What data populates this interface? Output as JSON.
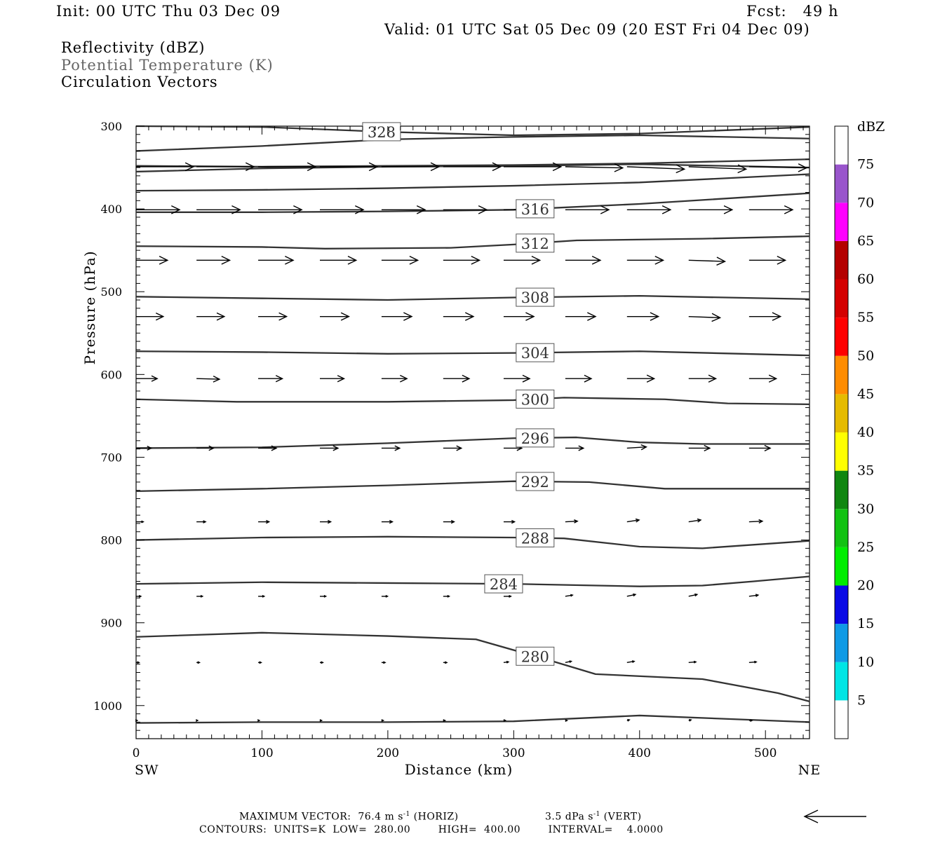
{
  "header": {
    "init": "Init: 00 UTC Thu 03 Dec 09",
    "fcst": "Fcst:   49 h",
    "valid": "Valid: 01 UTC Sat 05 Dec 09 (20 EST Fri 04 Dec 09)",
    "field1": "Reflectivity (dBZ)",
    "field2": "Potential Temperature (K)",
    "field3": "Circulation Vectors"
  },
  "colors": {
    "contour": "#333333",
    "vector": "#000000",
    "field2_text": "#666666"
  },
  "chart_data": {
    "type": "cross-section",
    "xlabel": "Distance (km)",
    "ylabel": "Pressure (hPa)",
    "xlim": [
      0,
      535
    ],
    "ylim": [
      1040,
      300
    ],
    "x_ticks": [
      0,
      100,
      200,
      300,
      400,
      500
    ],
    "y_ticks": [
      300,
      400,
      500,
      600,
      700,
      800,
      900,
      1000
    ],
    "x_end_labels": {
      "left": "SW",
      "right": "NE"
    },
    "theta_contours": [
      {
        "label": "",
        "x": [
          0,
          100,
          200,
          300,
          400,
          535
        ],
        "p": [
          1021,
          1020,
          1020,
          1019,
          1012,
          1020
        ]
      },
      {
        "label": "280",
        "x": [
          0,
          100,
          200,
          270,
          330,
          365,
          450,
          510,
          535
        ],
        "p": [
          917,
          912,
          916,
          920,
          946,
          962,
          968,
          985,
          995
        ]
      },
      {
        "label": "284",
        "x": [
          0,
          100,
          200,
          300,
          400,
          450,
          490,
          535
        ],
        "p": [
          853,
          851,
          852,
          853,
          856,
          855,
          850,
          844
        ]
      },
      {
        "label": "288",
        "x": [
          0,
          100,
          200,
          300,
          340,
          400,
          450,
          535
        ],
        "p": [
          800,
          797,
          796,
          797,
          798,
          808,
          810,
          801
        ]
      },
      {
        "label": "292",
        "x": [
          0,
          100,
          200,
          300,
          360,
          420,
          535
        ],
        "p": [
          741,
          738,
          734,
          729,
          730,
          738,
          738
        ]
      },
      {
        "label": "296",
        "x": [
          0,
          100,
          200,
          300,
          350,
          400,
          450,
          535
        ],
        "p": [
          689,
          688,
          683,
          677,
          676,
          682,
          684,
          684
        ]
      },
      {
        "label": "300",
        "x": [
          0,
          80,
          200,
          300,
          340,
          420,
          470,
          535
        ],
        "p": [
          630,
          633,
          633,
          631,
          628,
          630,
          635,
          636
        ]
      },
      {
        "label": "304",
        "x": [
          0,
          100,
          200,
          300,
          400,
          535
        ],
        "p": [
          572,
          573,
          575,
          574,
          572,
          577
        ]
      },
      {
        "label": "308",
        "x": [
          0,
          100,
          200,
          300,
          400,
          535
        ],
        "p": [
          506,
          508,
          510,
          507,
          505,
          509
        ]
      },
      {
        "label": "312",
        "x": [
          0,
          100,
          150,
          250,
          300,
          350,
          450,
          535
        ],
        "p": [
          445,
          446,
          448,
          447,
          443,
          438,
          436,
          433
        ]
      },
      {
        "label": "316",
        "x": [
          0,
          100,
          200,
          300,
          400,
          535
        ],
        "p": [
          404,
          404,
          403,
          401,
          394,
          381
        ]
      },
      {
        "label": "",
        "x": [
          0,
          100,
          200,
          300,
          400,
          535
        ],
        "p": [
          378,
          377,
          375,
          372,
          368,
          358
        ]
      },
      {
        "label": "",
        "x": [
          0,
          100,
          200,
          300,
          400,
          535
        ],
        "p": [
          355,
          351,
          349,
          348,
          346,
          350
        ]
      },
      {
        "label": "",
        "x": [
          0,
          100,
          200,
          300,
          400,
          535
        ],
        "p": [
          348,
          349,
          348,
          347,
          345,
          340
        ]
      },
      {
        "label": "",
        "x": [
          0,
          100,
          200,
          300,
          400,
          535
        ],
        "p": [
          330,
          324,
          316,
          313,
          311,
          315
        ]
      },
      {
        "label": "328",
        "x": [
          0,
          100,
          200,
          300,
          400,
          535
        ],
        "p": [
          300,
          301,
          307,
          311,
          309,
          301
        ]
      }
    ],
    "vector_grid": {
      "x": [
        0,
        48,
        97,
        146,
        195,
        244,
        292,
        341,
        390,
        439,
        487
      ],
      "rows": [
        {
          "p": 349,
          "u": [
            0.95,
            0.95,
            0.95,
            0.95,
            0.95,
            0.95,
            0.95,
            0.95,
            0.95,
            0.95,
            0.95
          ],
          "w": [
            0,
            0,
            0,
            0,
            0,
            0,
            0,
            -0.02,
            -0.04,
            -0.04,
            -0.02
          ]
        },
        {
          "p": 401,
          "u": [
            0.72,
            0.72,
            0.72,
            0.72,
            0.72,
            0.72,
            0.72,
            0.72,
            0.72,
            0.72,
            0.72
          ],
          "w": [
            0,
            0,
            0,
            0,
            0,
            0,
            0.01,
            0,
            0,
            0,
            0
          ]
        },
        {
          "p": 462,
          "u": [
            0.52,
            0.55,
            0.58,
            0.6,
            0.6,
            0.6,
            0.6,
            0.58,
            0.6,
            0.6,
            0.6
          ],
          "w": [
            0,
            0,
            0,
            0,
            0,
            0,
            0,
            0,
            0,
            -0.02,
            0
          ]
        },
        {
          "p": 530,
          "u": [
            0.45,
            0.46,
            0.47,
            0.48,
            0.5,
            0.5,
            0.5,
            0.5,
            0.52,
            0.52,
            0.52
          ],
          "w": [
            0,
            0,
            0,
            0,
            0,
            0,
            0,
            0,
            0,
            -0.02,
            0
          ]
        },
        {
          "p": 605,
          "u": [
            0.35,
            0.38,
            0.4,
            0.4,
            0.42,
            0.43,
            0.43,
            0.43,
            0.45,
            0.45,
            0.45
          ],
          "w": [
            0,
            -0.01,
            0,
            0,
            0,
            0,
            0,
            0,
            0,
            0,
            0
          ]
        },
        {
          "p": 689,
          "u": [
            0.25,
            0.28,
            0.3,
            0.3,
            0.3,
            0.3,
            0.3,
            0.3,
            0.32,
            0.35,
            0.35
          ],
          "w": [
            0,
            0,
            0,
            0,
            0,
            0,
            0,
            0,
            0.02,
            0,
            0
          ]
        },
        {
          "p": 778,
          "u": [
            0.12,
            0.15,
            0.18,
            0.18,
            0.18,
            0.18,
            0.18,
            0.2,
            0.2,
            0.2,
            0.22
          ],
          "w": [
            0,
            0,
            0,
            0,
            0,
            0,
            0,
            0.01,
            0.03,
            0.03,
            0.01
          ]
        },
        {
          "p": 868,
          "u": [
            0.08,
            0.1,
            0.1,
            0.1,
            0.1,
            0.1,
            0.12,
            0.12,
            0.14,
            0.14,
            0.15
          ],
          "w": [
            0,
            0,
            0,
            0,
            0,
            0,
            0,
            0.02,
            0.03,
            0.03,
            0.02
          ]
        },
        {
          "p": 948,
          "u": [
            0.05,
            0.05,
            0.05,
            0.05,
            0.06,
            0.06,
            0.08,
            0.1,
            0.12,
            0.12,
            0.12
          ],
          "w": [
            0,
            0,
            0,
            0,
            0,
            0,
            0.01,
            0.02,
            0.02,
            0.01,
            0.01
          ]
        },
        {
          "p": 1018,
          "u": [
            0.02,
            0.02,
            0.02,
            0.03,
            0.03,
            0.03,
            0.03,
            0.03,
            0.04,
            0.04,
            0.05
          ],
          "w": [
            0,
            0,
            0,
            0,
            0,
            0,
            0,
            0,
            0.01,
            0.01,
            0
          ]
        }
      ]
    },
    "colorbar": {
      "title": "dBZ",
      "labels": [
        "5",
        "10",
        "15",
        "20",
        "25",
        "30",
        "35",
        "40",
        "45",
        "50",
        "55",
        "60",
        "65",
        "70",
        "75"
      ],
      "colors": [
        "#ffffff",
        "#00e5e5",
        "#0f9ae5",
        "#0a0ae5",
        "#00ed00",
        "#12c212",
        "#108610",
        "#ffff00",
        "#e5bb00",
        "#ff8c00",
        "#ff0000",
        "#d40000",
        "#b40000",
        "#ff00ff",
        "#9955cc",
        "#ffffff"
      ]
    },
    "footer": {
      "line1_a": "MAXIMUM VECTOR:  76.4 m s",
      "line1_a_sup": "-1",
      "line1_b": " (HORIZ)",
      "line1_c": "3.5 dPa s",
      "line1_c_sup": "-1",
      "line1_d": " (VERT)",
      "line2": "CONTOURS:  UNITS=K  LOW=  280.00        HIGH=  400.00        INTERVAL=    4.0000"
    }
  }
}
